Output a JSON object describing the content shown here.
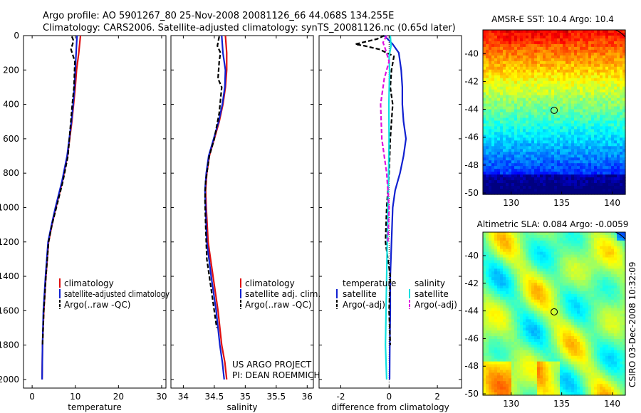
{
  "header": {
    "title_line1": "Argo profile: AO 5901267_80 25-Nov-2008 20081126_66 44.068S 134.255E",
    "title_line2": "Climatology: CARS2006. Satellite-adjusted climatology: synTS_20081126.nc (0.65d later)"
  },
  "footer": {
    "project_line1": "US ARGO PROJECT",
    "project_line2": "PI: DEAN ROEMMICH",
    "credit": "CSIRO 03-Dec-2008 10:32:09"
  },
  "colors": {
    "climatology": "#e01010",
    "satellite": "#1020d0",
    "argo": "#000000",
    "salinity_satellite": "#10e0e0",
    "salinity_argo_adj": "#e010e0"
  },
  "chart_data": [
    {
      "type": "line",
      "id": "temperature",
      "xlabel": "temperature",
      "ylabel": "",
      "xlim": [
        -2,
        31
      ],
      "ylim": [
        2050,
        0
      ],
      "xticks": [
        "0",
        "10",
        "20",
        "30"
      ],
      "yticks": [
        "0",
        "200",
        "400",
        "600",
        "800",
        "1000",
        "1200",
        "1400",
        "1600",
        "1800",
        "2000"
      ],
      "legend": [
        "climatology",
        "satellite-adjusted climatology",
        "Argo(..raw -QC)"
      ],
      "legend_location": "lower-right",
      "series": [
        {
          "name": "climatology",
          "color": "#e01010",
          "dash": "solid",
          "x": [
            11.2,
            11.0,
            10.8,
            10.3,
            10.0,
            9.6,
            9.2,
            8.2,
            7.0,
            5.5,
            4.6,
            3.8,
            3.2,
            2.7,
            2.4,
            2.3
          ],
          "y": [
            0,
            50,
            100,
            200,
            300,
            400,
            500,
            700,
            850,
            1000,
            1100,
            1200,
            1400,
            1600,
            1800,
            2000
          ]
        },
        {
          "name": "satellite-adjusted climatology",
          "color": "#1020d0",
          "dash": "solid",
          "x": [
            10.4,
            10.3,
            10.2,
            10.0,
            9.8,
            9.5,
            9.1,
            8.1,
            6.9,
            5.4,
            4.5,
            3.7,
            3.1,
            2.6,
            2.4,
            2.3
          ],
          "y": [
            0,
            50,
            100,
            200,
            300,
            400,
            500,
            700,
            850,
            1000,
            1100,
            1200,
            1400,
            1600,
            1800,
            2000
          ]
        },
        {
          "name": "Argo(..raw -QC)",
          "color": "#000000",
          "dash": "dash",
          "x": [
            9.2,
            9.6,
            9.0,
            9.9,
            9.7,
            9.3,
            8.3,
            7.1,
            5.6,
            4.6,
            3.8,
            3.2,
            2.7,
            2.4
          ],
          "y": [
            5,
            30,
            80,
            150,
            300,
            400,
            700,
            850,
            1000,
            1100,
            1200,
            1400,
            1600,
            1800
          ]
        }
      ]
    },
    {
      "type": "line",
      "id": "salinity",
      "xlabel": "salinity",
      "xlim": [
        33.8,
        36.1
      ],
      "ylim": [
        2050,
        0
      ],
      "xticks": [
        "34",
        "34.5",
        "35",
        "35.5",
        "36"
      ],
      "legend": [
        "climatology",
        "satellite adj. clim.",
        "Argo(..raw -QC)"
      ],
      "legend_location": "lower-right",
      "series": [
        {
          "name": "climatology",
          "color": "#e01010",
          "dash": "solid",
          "x": [
            34.68,
            34.7,
            34.7,
            34.68,
            34.64,
            34.58,
            34.5,
            34.42,
            34.38,
            34.36,
            34.37,
            34.4,
            34.48,
            34.56,
            34.62,
            34.67,
            34.7
          ],
          "y": [
            0,
            100,
            200,
            300,
            400,
            500,
            600,
            700,
            800,
            900,
            1000,
            1200,
            1400,
            1600,
            1800,
            1900,
            2000
          ]
        },
        {
          "name": "satellite adj. clim.",
          "color": "#1020d0",
          "dash": "solid",
          "x": [
            34.62,
            34.64,
            34.68,
            34.67,
            34.63,
            34.57,
            34.49,
            34.41,
            34.37,
            34.35,
            34.36,
            34.38,
            34.45,
            34.53,
            34.59,
            34.63,
            34.66
          ],
          "y": [
            0,
            100,
            200,
            300,
            400,
            500,
            600,
            700,
            800,
            900,
            1000,
            1200,
            1400,
            1600,
            1800,
            1900,
            2000
          ]
        },
        {
          "name": "Argo(..raw -QC)",
          "color": "#000000",
          "dash": "dash",
          "x": [
            34.58,
            34.55,
            34.6,
            34.58,
            34.56,
            34.62,
            34.58,
            34.5,
            34.42,
            34.36,
            34.35,
            34.36,
            34.38,
            34.46,
            34.54
          ],
          "y": [
            5,
            60,
            100,
            150,
            250,
            300,
            450,
            600,
            700,
            850,
            950,
            1100,
            1300,
            1500,
            1700
          ]
        }
      ]
    },
    {
      "type": "line",
      "id": "difference",
      "xlabel": "difference from climatology",
      "xlim": [
        -2.9,
        3.0
      ],
      "ylim": [
        2050,
        0
      ],
      "xticks": [
        "-2",
        "0",
        "2"
      ],
      "legend_groups": [
        {
          "title": "temperature",
          "entries": [
            "satellite",
            "Argo(-adj)"
          ]
        },
        {
          "title": "salinity",
          "entries": [
            "satellite",
            "Argo(-adj)"
          ]
        }
      ],
      "legend_location": "lower-center",
      "series": [
        {
          "name": "temperature satellite",
          "color": "#1020d0",
          "dash": "solid",
          "x": [
            -0.2,
            0.15,
            0.4,
            0.5,
            0.55,
            0.55,
            0.6,
            0.7,
            0.6,
            0.45,
            0.25,
            0.15,
            0.1,
            0.05,
            0.05,
            0.03,
            0.02
          ],
          "y": [
            0,
            50,
            100,
            200,
            300,
            400,
            500,
            600,
            700,
            800,
            900,
            1000,
            1200,
            1400,
            1600,
            1800,
            2000
          ]
        },
        {
          "name": "temperature Argo(-adj)",
          "color": "#000000",
          "dash": "dash",
          "x": [
            -0.2,
            -0.5,
            -1.4,
            -1.0,
            -0.4,
            0.2,
            0.1,
            0.05,
            0.15,
            0.1,
            0.05,
            0.0,
            -0.1,
            -0.15,
            0.05,
            0.0,
            0.05
          ],
          "y": [
            0,
            20,
            50,
            60,
            80,
            120,
            200,
            300,
            400,
            500,
            600,
            800,
            1000,
            1200,
            1400,
            1600,
            1800
          ]
        },
        {
          "name": "salinity satellite",
          "color": "#10e0e0",
          "dash": "solid",
          "x": [
            0.05,
            0.08,
            0.0,
            0.02,
            -0.01,
            0.0,
            -0.02,
            -0.05,
            -0.1,
            -0.15,
            -0.1
          ],
          "y": [
            0,
            60,
            120,
            200,
            400,
            600,
            800,
            1000,
            1400,
            1800,
            2000
          ]
        },
        {
          "name": "salinity Argo(-adj)",
          "color": "#e010e0",
          "dash": "dash",
          "x": [
            -0.1,
            -0.25,
            -0.15,
            0.0,
            -0.2,
            -0.35,
            -0.3,
            -0.1,
            0.0,
            -0.05
          ],
          "y": [
            0,
            40,
            80,
            150,
            250,
            400,
            600,
            800,
            1000,
            1200
          ]
        }
      ]
    },
    {
      "type": "heatmap",
      "id": "sst-map",
      "title": "AMSR-E SST: 10.4 Argo: 10.4",
      "xticks": [
        "130",
        "135",
        "140"
      ],
      "yticks": [
        "-40",
        "-42",
        "-44",
        "-46",
        "-48",
        "-50"
      ],
      "xlim": [
        127.2,
        141.3
      ],
      "ylim": [
        -50.1,
        -38.3
      ],
      "argo_position": {
        "lon": 134.255,
        "lat": -44.068
      }
    },
    {
      "type": "heatmap",
      "id": "sla-map",
      "title": "Altimetric SLA: 0.084 Argo: -0.0059",
      "xticks": [
        "130",
        "135",
        "140"
      ],
      "yticks": [
        "-40",
        "-42",
        "-44",
        "-46",
        "-48",
        "-50"
      ],
      "xlim": [
        127.2,
        141.3
      ],
      "ylim": [
        -50.1,
        -38.3
      ],
      "argo_position": {
        "lon": 134.255,
        "lat": -44.068
      }
    }
  ]
}
